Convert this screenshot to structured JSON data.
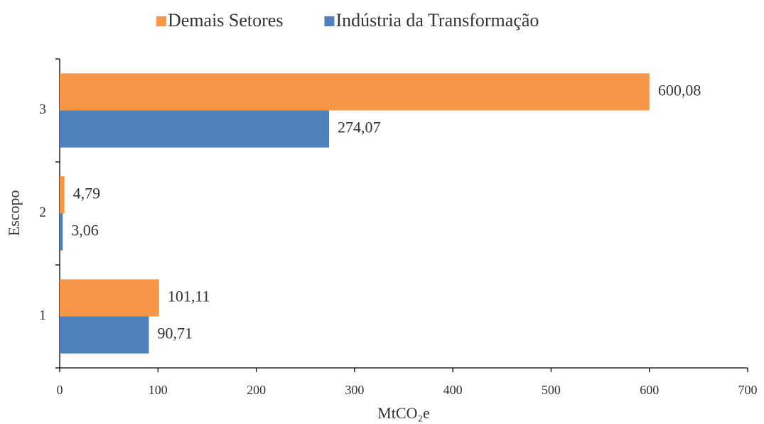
{
  "chart_data": {
    "type": "hbar",
    "x_label": "MtCO₂e",
    "y_label": "Escopo",
    "categories": [
      "1",
      "2",
      "3"
    ],
    "series": [
      {
        "name": "Demais Setores",
        "color": "#f79646",
        "values": [
          101.11,
          4.79,
          600.08
        ],
        "value_labels": [
          "101,11",
          "4,79",
          "600,08"
        ]
      },
      {
        "name": "Indústria da Transformação",
        "color": "#4f81bd",
        "values": [
          90.71,
          3.06,
          274.07
        ],
        "value_labels": [
          "90,71",
          "3,06",
          "274,07"
        ]
      }
    ],
    "xlim": [
      0,
      700
    ],
    "xticks": [
      0,
      100,
      200,
      300,
      400,
      500,
      600,
      700
    ],
    "legend": "top"
  }
}
